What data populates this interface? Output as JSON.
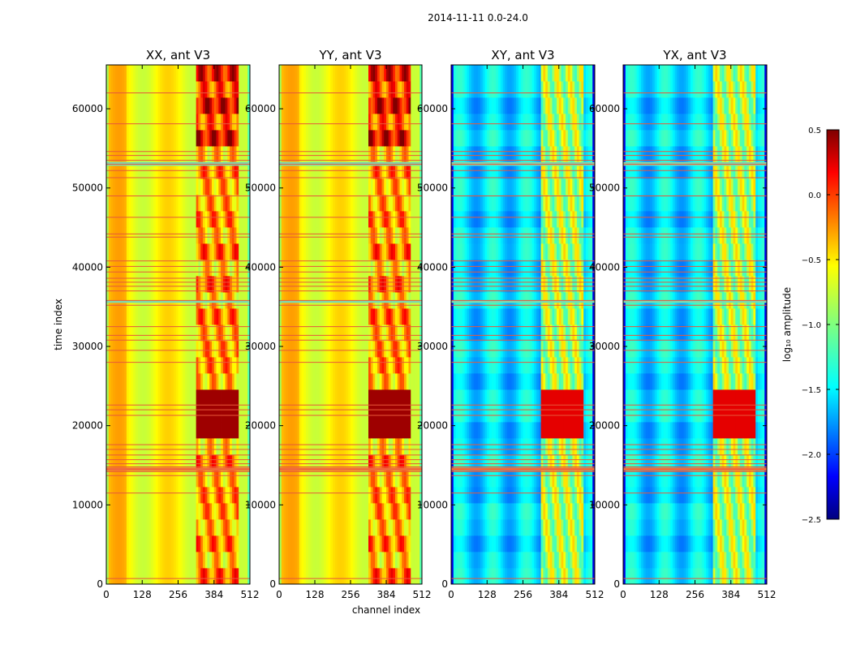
{
  "figure": {
    "suptitle": "2014-11-11 0.0-24.0"
  },
  "colors": {
    "jet": [
      "#00007f",
      "#0000ff",
      "#007fff",
      "#00ffff",
      "#7fff7f",
      "#ffff00",
      "#ff7f00",
      "#ff0000",
      "#7f0000"
    ],
    "flag_line": "#e8583a",
    "flag_band": "#f06a3c",
    "gap_band": "#7fd8b0"
  },
  "chart_data": [
    {
      "type": "heatmap",
      "title": "XX, ant V3",
      "xlabel": "",
      "ylabel": "time index",
      "xlim": [
        0,
        512
      ],
      "ylim": [
        0,
        65536
      ],
      "xticks": [
        "0",
        "128",
        "256",
        "384",
        "512"
      ],
      "yticks": [
        "0",
        "10000",
        "20000",
        "30000",
        "40000",
        "50000",
        "60000"
      ],
      "kind": "parallel",
      "value_range_log10": [
        -0.6,
        0.5
      ]
    },
    {
      "type": "heatmap",
      "title": "YY, ant V3",
      "xlabel": "channel index",
      "ylabel": "",
      "xlim": [
        0,
        512
      ],
      "ylim": [
        0,
        65536
      ],
      "xticks": [
        "0",
        "128",
        "256",
        "384",
        "512"
      ],
      "yticks": [
        "0",
        "10000",
        "20000",
        "30000",
        "40000",
        "50000",
        "60000"
      ],
      "kind": "parallel",
      "value_range_log10": [
        -0.6,
        0.5
      ]
    },
    {
      "type": "heatmap",
      "title": "XY, ant V3",
      "xlabel": "",
      "ylabel": "",
      "xlim": [
        0,
        512
      ],
      "ylim": [
        0,
        65536
      ],
      "xticks": [
        "0",
        "128",
        "256",
        "384",
        "512"
      ],
      "yticks": [
        "0",
        "10000",
        "20000",
        "30000",
        "40000",
        "50000",
        "60000"
      ],
      "kind": "cross",
      "value_range_log10": [
        -2.5,
        0.5
      ]
    },
    {
      "type": "heatmap",
      "title": "YX, ant V3",
      "xlabel": "",
      "ylabel": "",
      "xlim": [
        0,
        512
      ],
      "ylim": [
        0,
        65536
      ],
      "xticks": [
        "0",
        "128",
        "256",
        "384",
        "512"
      ],
      "yticks": [
        "0",
        "10000",
        "20000",
        "30000",
        "40000",
        "50000",
        "60000"
      ],
      "kind": "cross",
      "value_range_log10": [
        -2.5,
        0.5
      ]
    }
  ],
  "flagged_time_indices": [
    700,
    11500,
    13700,
    14200,
    14500,
    14800,
    15200,
    15700,
    16300,
    17000,
    17600,
    21300,
    22000,
    22600,
    28000,
    29500,
    30800,
    31400,
    32500,
    35200,
    35800,
    37000,
    37600,
    38100,
    38600,
    39400,
    40100,
    40800,
    43800,
    44200,
    46300,
    49000,
    51300,
    52200,
    53000,
    53500,
    54100,
    54600,
    58100,
    62000
  ],
  "flagged_band": [
    14300,
    14700
  ],
  "gap_bands": [
    [
      35500,
      35800
    ],
    [
      52800,
      53300
    ]
  ],
  "colorbar": {
    "label": "log₁₀ amplitude",
    "range": [
      -2.5,
      0.5
    ],
    "ticks": [
      "0.5",
      "0.0",
      "−0.5",
      "−1.0",
      "−1.5",
      "−2.0",
      "−2.5"
    ],
    "tick_values": [
      0.5,
      0.0,
      -0.5,
      -1.0,
      -1.5,
      -2.0,
      -2.5
    ]
  }
}
